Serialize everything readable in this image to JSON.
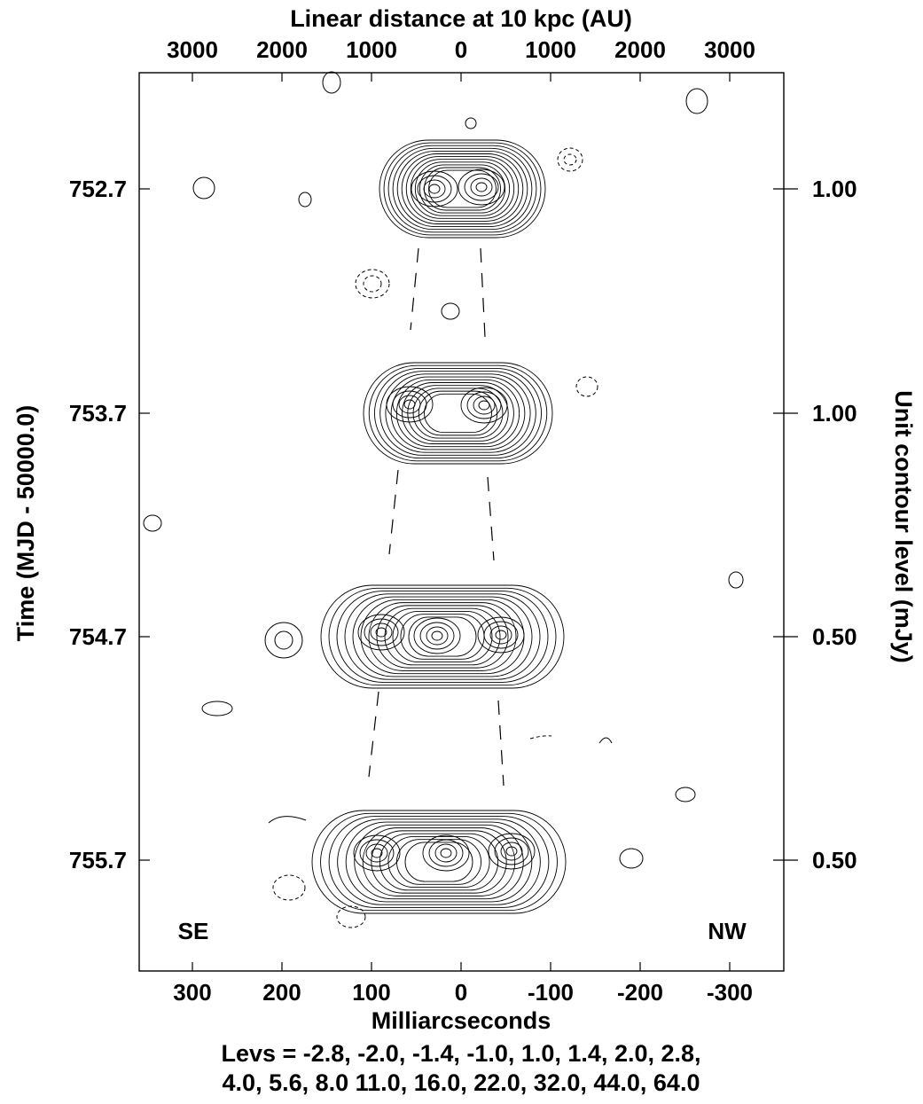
{
  "chart_data": {
    "type": "contour",
    "xlabel": "Milliarcseconds",
    "x2label": "Linear distance at 10 kpc (AU)",
    "ylabel": "Time (MJD - 50000.0)",
    "y2label": "Unit contour level (mJy)",
    "xlim": [
      360,
      -360
    ],
    "x_ticks": [
      "300",
      "200",
      "100",
      "0",
      "-100",
      "-200",
      "-300"
    ],
    "x_tick_values": [
      300,
      200,
      100,
      0,
      -100,
      -200,
      -300
    ],
    "x2_ticks": [
      "3000",
      "2000",
      "1000",
      "0",
      "1000",
      "2000",
      "3000"
    ],
    "x2_tick_values": [
      300,
      200,
      100,
      0,
      -100,
      -200,
      -300
    ],
    "y_ticks": [
      "752.7",
      "753.7",
      "754.7",
      "755.7"
    ],
    "y2_ticks": [
      "1.00",
      "1.00",
      "0.50",
      "0.50"
    ],
    "corner_labels": {
      "left": "SE",
      "right": "NW"
    },
    "levels_caption": [
      "Levs = -2.8, -2.0, -1.4, -1.0, 1.0, 1.4, 2.0, 2.8,",
      "4.0, 5.6, 8.0 11.0, 16.0, 22.0, 32.0, 44.0, 64.0"
    ],
    "epochs": [
      {
        "mjd": "752.7",
        "unit_mJy": "1.00",
        "components": [
          {
            "offset_mas": 15,
            "peak": 30
          },
          {
            "offset_mas": -23,
            "peak": 32
          }
        ]
      },
      {
        "mjd": "753.7",
        "unit_mJy": "1.00",
        "components": [
          {
            "offset_mas": 58,
            "peak": 45
          },
          {
            "offset_mas": -25,
            "peak": 55
          }
        ]
      },
      {
        "mjd": "754.7",
        "unit_mJy": "0.50",
        "components": [
          {
            "offset_mas": 90,
            "peak": 60
          },
          {
            "offset_mas": 25,
            "peak": 30
          },
          {
            "offset_mas": -45,
            "peak": 25
          }
        ]
      },
      {
        "mjd": "755.7",
        "unit_mJy": "0.50",
        "components": [
          {
            "offset_mas": 105,
            "peak": 60
          },
          {
            "offset_mas": 18,
            "peak": 55
          },
          {
            "offset_mas": -58,
            "peak": 55
          }
        ]
      }
    ]
  }
}
